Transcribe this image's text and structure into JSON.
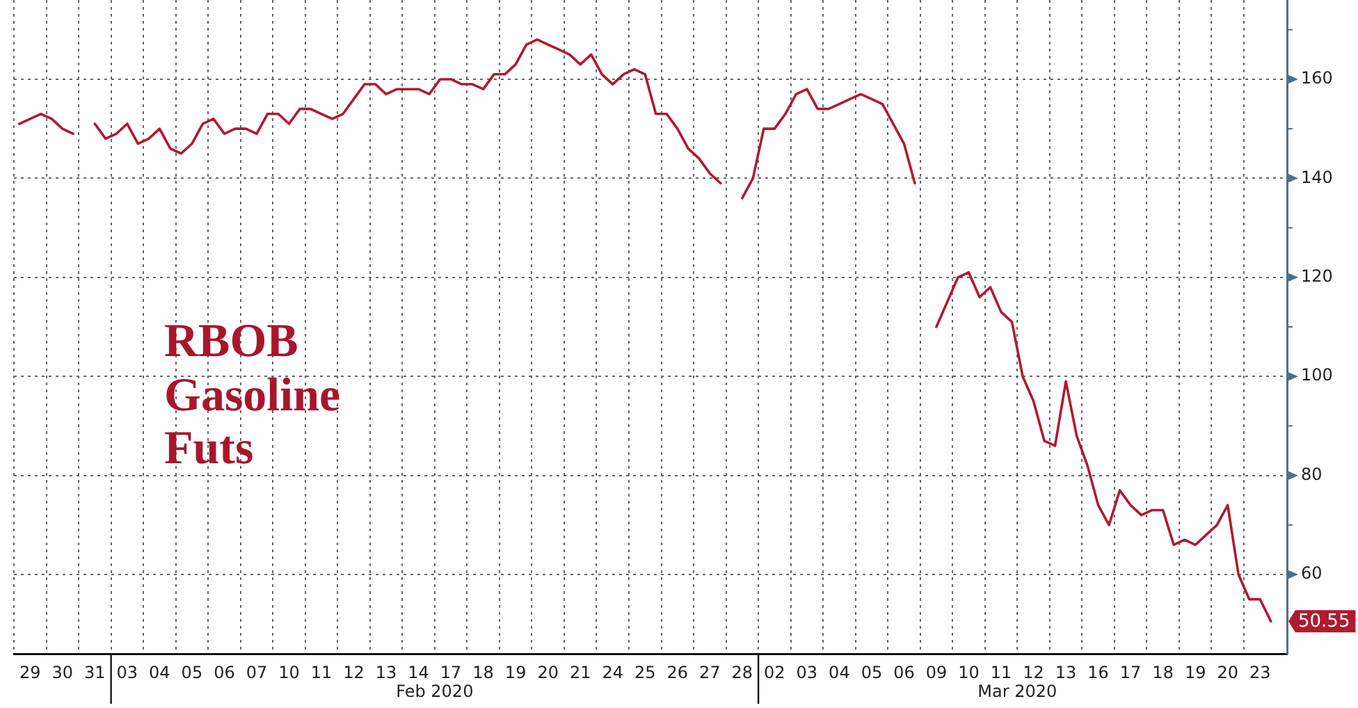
{
  "chart_data": {
    "type": "line",
    "title": "RBOB Gasoline Futs",
    "categories": [
      null,
      "29",
      null,
      null,
      "30",
      null,
      null,
      "31",
      null,
      null,
      "03",
      null,
      null,
      "04",
      null,
      null,
      "05",
      null,
      null,
      "06",
      null,
      null,
      "07",
      null,
      null,
      "10",
      null,
      null,
      "11",
      null,
      null,
      "12",
      null,
      null,
      "13",
      null,
      null,
      "14",
      null,
      null,
      "17",
      null,
      null,
      "18",
      null,
      null,
      "19",
      null,
      null,
      "20",
      null,
      null,
      "21",
      null,
      null,
      "24",
      null,
      null,
      "25",
      null,
      null,
      "26",
      null,
      null,
      "27",
      null,
      null,
      "28",
      null,
      null,
      "02",
      null,
      null,
      "03",
      null,
      null,
      "04",
      null,
      null,
      "05",
      null,
      null,
      "06",
      null,
      null,
      "09",
      null,
      null,
      "10",
      null,
      null,
      "11",
      null,
      null,
      "12",
      null,
      null,
      "13",
      null,
      null,
      "16",
      null,
      null,
      "17",
      null,
      null,
      "18",
      null,
      null,
      "19",
      null,
      null,
      "20",
      null,
      null,
      "23",
      null,
      null
    ],
    "series": [
      {
        "color": "#b01a2f",
        "values": [
          151,
          152,
          153,
          152,
          150,
          149,
          null,
          151,
          148,
          149,
          151,
          147,
          148,
          150,
          146,
          145,
          147,
          151,
          152,
          149,
          150,
          150,
          149,
          153,
          153,
          151,
          154,
          154,
          153,
          152,
          153,
          156,
          159,
          159,
          157,
          158,
          158,
          158,
          157,
          160,
          160,
          159,
          159,
          158,
          161,
          161,
          163,
          167,
          168,
          167,
          166,
          165,
          163,
          165,
          161,
          159,
          161,
          162,
          161,
          153,
          153,
          150,
          146,
          144,
          141,
          139,
          null,
          136,
          140,
          150,
          150,
          153,
          157,
          158,
          154,
          154,
          155,
          156,
          157,
          156,
          155,
          151,
          147,
          139,
          null,
          110,
          115,
          120,
          121,
          116,
          118,
          113,
          111,
          100,
          95,
          87,
          86,
          99,
          88,
          82,
          74,
          70,
          77,
          74,
          72,
          73,
          73,
          66,
          67,
          66,
          68,
          70,
          74,
          60,
          55,
          55,
          50.55,
          null
        ],
        "value_labels": [
          null,
          null,
          null,
          null,
          null,
          null,
          null,
          null,
          null,
          null,
          null,
          null,
          null,
          null,
          null,
          null,
          null,
          null,
          null,
          null,
          null,
          null,
          null,
          null,
          null,
          null,
          null,
          null,
          null,
          null,
          null,
          null,
          null,
          null,
          null,
          null,
          null,
          null,
          null,
          null,
          null,
          null,
          null,
          null,
          null,
          null,
          null,
          null,
          null,
          null,
          null,
          null,
          null,
          null,
          null,
          null,
          null,
          null,
          null,
          null,
          null,
          null,
          null,
          null,
          null,
          null,
          null,
          null,
          null,
          null,
          null,
          null,
          null,
          null,
          null,
          null,
          null,
          null,
          null,
          null,
          null,
          null,
          null,
          null,
          null,
          null,
          null,
          null,
          null,
          null,
          null,
          null,
          null,
          null,
          null,
          null,
          null,
          null,
          null,
          null,
          null,
          null,
          null,
          null,
          null,
          null,
          null,
          null,
          null,
          null,
          null,
          null,
          null,
          null,
          null,
          null,
          "50.55",
          null
        ]
      }
    ],
    "ylim": [
      44,
      176
    ],
    "yticks": [
      60,
      {
        "value": 70,
        "label": null
      },
      80,
      {
        "value": 90,
        "label": null
      },
      100,
      {
        "value": 110,
        "label": null
      },
      120,
      {
        "value": 130,
        "label": null
      },
      140,
      {
        "value": 150,
        "label": null
      },
      160,
      {
        "value": 170,
        "label": null
      }
    ],
    "grid": true,
    "marker": "none",
    "line_style": "solid",
    "annotations": [
      "Feb 2020",
      "Mar 2020"
    ]
  }
}
